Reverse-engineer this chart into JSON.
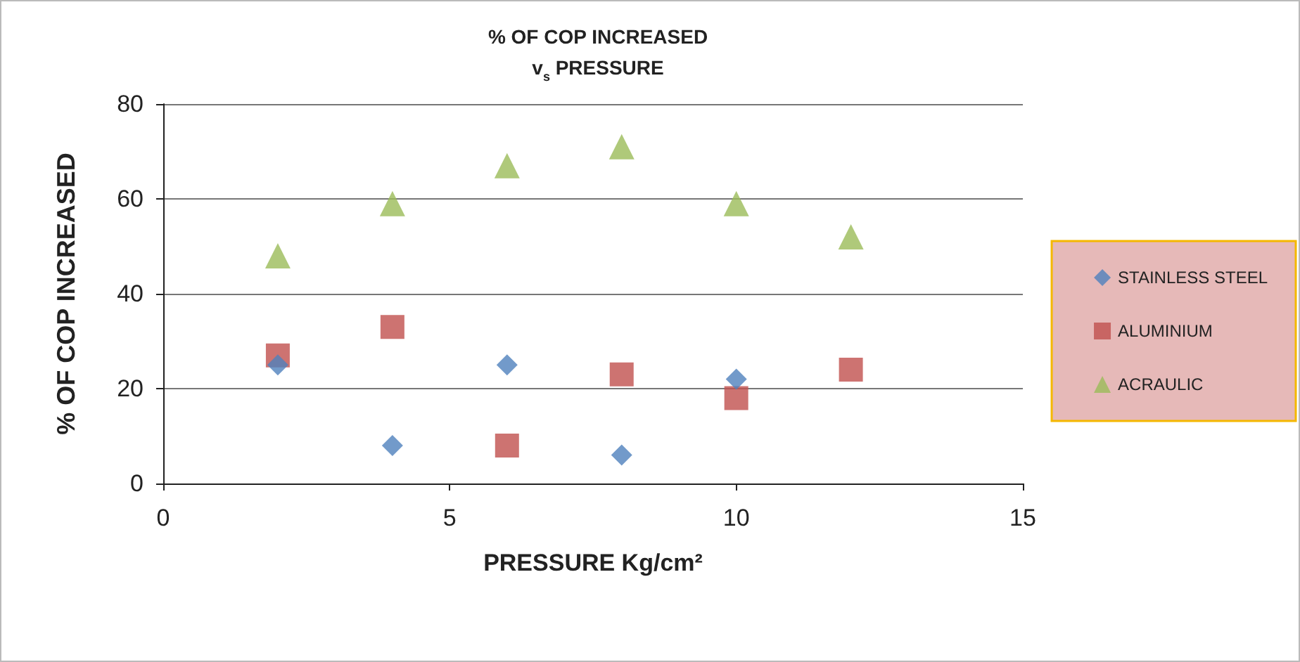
{
  "chart_data": {
    "type": "scatter",
    "title": "% OF COP INCREASED\nv$_{s}$ PRESSURE",
    "xlabel": "PRESSURE Kg/cm²",
    "ylabel": "% OF COP INCREASED",
    "x": [
      2,
      4,
      6,
      8,
      10,
      12
    ],
    "series": [
      {
        "name": "STAINLESS STEEL",
        "color": "#4f81bd",
        "marker": "diamond",
        "values": [
          25,
          8,
          25,
          6,
          22,
          null
        ]
      },
      {
        "name": "ALUMINIUM",
        "color": "#c0504d",
        "marker": "square",
        "values": [
          27,
          33,
          8,
          23,
          18,
          24
        ]
      },
      {
        "name": "ACRAULIC",
        "color": "#9bbb59",
        "marker": "triangle",
        "values": [
          48,
          59,
          67,
          71,
          59,
          52
        ]
      }
    ],
    "xlim": [
      0,
      15
    ],
    "xticks": [
      0,
      5,
      10,
      15
    ],
    "ylim": [
      0,
      80
    ],
    "yticks": [
      0,
      20,
      40,
      60,
      80
    ],
    "grid": "y",
    "legend": "right"
  }
}
